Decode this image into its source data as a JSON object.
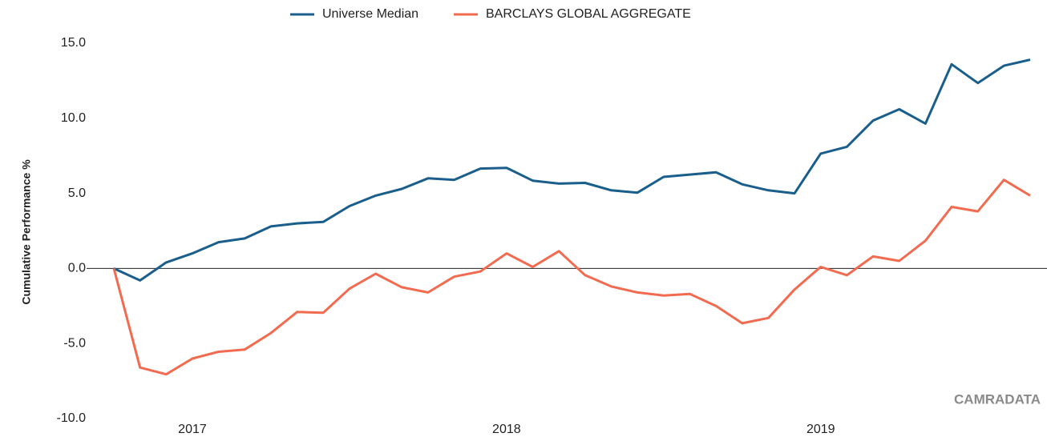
{
  "chart_data": {
    "type": "line",
    "y_axis_label": "Cumulative Performance %",
    "watermark": "CAMRADATA",
    "categories": [
      null,
      null,
      null,
      "2017",
      null,
      null,
      null,
      null,
      null,
      null,
      null,
      null,
      null,
      null,
      null,
      "2018",
      null,
      null,
      null,
      null,
      null,
      null,
      null,
      null,
      null,
      null,
      null,
      "2019",
      null,
      null,
      null,
      null,
      null,
      null,
      null,
      null
    ],
    "series": [
      {
        "name": "Universe Median",
        "color": "#1a5e8c",
        "values": [
          0,
          -0.8,
          0.4,
          1.0,
          1.75,
          2.0,
          2.8,
          3.0,
          3.1,
          4.15,
          4.85,
          5.3,
          6.0,
          5.9,
          6.65,
          6.7,
          5.85,
          5.65,
          5.7,
          5.2,
          5.05,
          6.1,
          6.25,
          6.4,
          5.6,
          5.2,
          5.0,
          7.65,
          8.1,
          9.85,
          10.6,
          9.65,
          13.6,
          12.35,
          13.5,
          13.9
        ]
      },
      {
        "name": "BARCLAYS GLOBAL AGGREGATE",
        "color": "#f26b50",
        "values": [
          0,
          -6.6,
          -7.05,
          -6.0,
          -5.55,
          -5.4,
          -4.3,
          -2.9,
          -2.95,
          -1.35,
          -0.35,
          -1.25,
          -1.6,
          -0.55,
          -0.2,
          1.0,
          0.1,
          1.15,
          -0.45,
          -1.2,
          -1.6,
          -1.8,
          -1.7,
          -2.5,
          -3.65,
          -3.3,
          -1.4,
          0.1,
          -0.45,
          0.8,
          0.5,
          1.85,
          4.1,
          3.8,
          5.9,
          4.85
        ]
      }
    ],
    "ylim": [
      -10,
      15
    ],
    "yticks": [
      {
        "value": -10,
        "label": "-10.0"
      },
      {
        "value": -5,
        "label": "-5.0"
      },
      {
        "value": 0,
        "label": "0.0"
      },
      {
        "value": 5,
        "label": "5.0"
      },
      {
        "value": 10,
        "label": "10.0"
      },
      {
        "value": 15,
        "label": "15.0"
      }
    ],
    "grid": false
  }
}
